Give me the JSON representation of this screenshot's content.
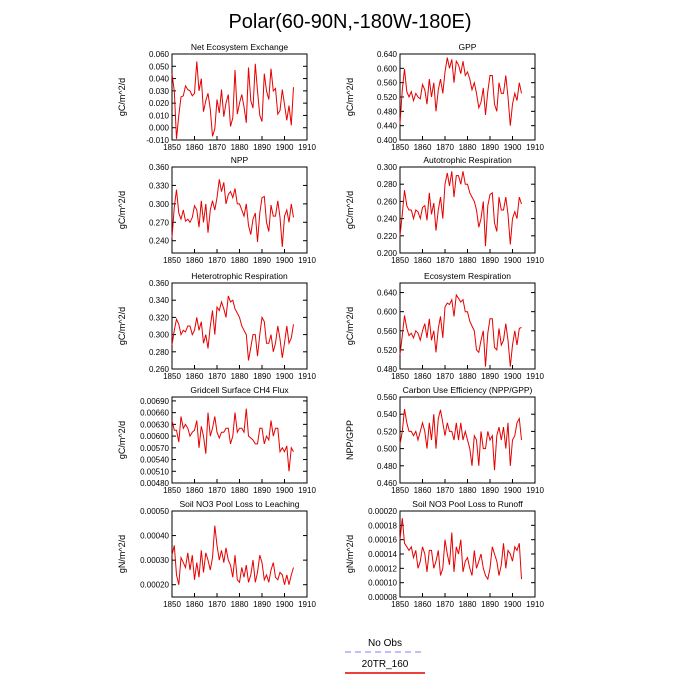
{
  "page_title": "Polar(60-90N,-180W-180E)",
  "legend": {
    "items": [
      {
        "label": "No Obs",
        "color": "#aaaaff",
        "style": "dashed"
      },
      {
        "label": "20TR_160",
        "color": "#e60000",
        "style": "solid"
      }
    ]
  },
  "chart_data": [
    {
      "type": "line",
      "title": "Net Ecosystem Exchange",
      "ylabel": "gC/m^2/d",
      "xlim": [
        1850,
        1910
      ],
      "ylim": [
        -0.01,
        0.06
      ],
      "xticks": [
        "1850",
        "1860",
        "1870",
        "1880",
        "1890",
        "1900",
        "1910"
      ],
      "yticks": [
        "-0.010",
        "0.000",
        "0.010",
        "0.020",
        "0.030",
        "0.040",
        "0.050",
        "0.060"
      ],
      "series": [
        {
          "color": "#e60000",
          "x_start": 1850,
          "values": [
            0.044,
            0.03,
            -0.009,
            0.01,
            0.025,
            0.026,
            0.034,
            0.031,
            0.03,
            0.026,
            0.028,
            0.054,
            0.03,
            0.04,
            0.013,
            0.022,
            0.028,
            0.015,
            -0.007,
            -0.001,
            0.023,
            0.012,
            0.031,
            0.009,
            0.02,
            0.027,
            0.001,
            0.008,
            0.047,
            0.011,
            0.02,
            0.027,
            0.017,
            0.004,
            0.049,
            0.022,
            0.016,
            0.052,
            0.03,
            0.01,
            0.005,
            0.044,
            0.03,
            0.023,
            0.048,
            0.03,
            0.032,
            0.011,
            0.014,
            0.031,
            0.019,
            0.006,
            0.018,
            0.002,
            0.033
          ]
        }
      ]
    },
    {
      "type": "line",
      "title": "GPP",
      "ylabel": "gC/m^2/d",
      "xlim": [
        1850,
        1910
      ],
      "ylim": [
        0.4,
        0.64
      ],
      "xticks": [
        "1850",
        "1860",
        "1870",
        "1880",
        "1890",
        "1900",
        "1910"
      ],
      "yticks": [
        "0.400",
        "0.440",
        "0.480",
        "0.520",
        "0.560",
        "0.600",
        "0.640"
      ],
      "series": [
        {
          "color": "#e60000",
          "x_start": 1850,
          "values": [
            0.445,
            0.54,
            0.598,
            0.535,
            0.52,
            0.535,
            0.51,
            0.53,
            0.52,
            0.515,
            0.555,
            0.54,
            0.5,
            0.57,
            0.52,
            0.56,
            0.48,
            0.54,
            0.57,
            0.53,
            0.59,
            0.63,
            0.6,
            0.625,
            0.56,
            0.62,
            0.61,
            0.585,
            0.62,
            0.58,
            0.59,
            0.57,
            0.54,
            0.56,
            0.53,
            0.49,
            0.505,
            0.545,
            0.47,
            0.535,
            0.58,
            0.58,
            0.5,
            0.48,
            0.56,
            0.53,
            0.53,
            0.58,
            0.52,
            0.44,
            0.5,
            0.53,
            0.51,
            0.56,
            0.53
          ]
        }
      ]
    },
    {
      "type": "line",
      "title": "NPP",
      "ylabel": "gC/m^2/d",
      "xlim": [
        1850,
        1910
      ],
      "ylim": [
        0.22,
        0.36
      ],
      "xticks": [
        "1850",
        "1860",
        "1870",
        "1880",
        "1890",
        "1900",
        "1910"
      ],
      "yticks": [
        "0.240",
        "0.270",
        "0.300",
        "0.330",
        "0.360"
      ],
      "series": [
        {
          "color": "#e60000",
          "x_start": 1850,
          "values": [
            0.245,
            0.295,
            0.323,
            0.285,
            0.275,
            0.29,
            0.272,
            0.275,
            0.27,
            0.278,
            0.297,
            0.29,
            0.262,
            0.305,
            0.27,
            0.3,
            0.253,
            0.29,
            0.305,
            0.29,
            0.31,
            0.34,
            0.32,
            0.335,
            0.3,
            0.315,
            0.32,
            0.31,
            0.325,
            0.3,
            0.3,
            0.29,
            0.28,
            0.3,
            0.265,
            0.25,
            0.275,
            0.285,
            0.238,
            0.285,
            0.31,
            0.312,
            0.27,
            0.255,
            0.298,
            0.28,
            0.28,
            0.305,
            0.278,
            0.23,
            0.28,
            0.29,
            0.27,
            0.3,
            0.278
          ]
        }
      ]
    },
    {
      "type": "line",
      "title": "Autotrophic Respiration",
      "ylabel": "gC/m^2/d",
      "xlim": [
        1850,
        1910
      ],
      "ylim": [
        0.2,
        0.3
      ],
      "xticks": [
        "1850",
        "1860",
        "1870",
        "1880",
        "1890",
        "1900",
        "1910"
      ],
      "yticks": [
        "0.200",
        "0.220",
        "0.240",
        "0.260",
        "0.280",
        "0.300"
      ],
      "series": [
        {
          "color": "#e60000",
          "x_start": 1850,
          "values": [
            0.22,
            0.245,
            0.273,
            0.255,
            0.25,
            0.25,
            0.24,
            0.25,
            0.248,
            0.24,
            0.253,
            0.255,
            0.238,
            0.27,
            0.245,
            0.258,
            0.226,
            0.25,
            0.265,
            0.24,
            0.28,
            0.293,
            0.278,
            0.295,
            0.265,
            0.29,
            0.29,
            0.28,
            0.295,
            0.28,
            0.28,
            0.27,
            0.265,
            0.26,
            0.25,
            0.23,
            0.24,
            0.26,
            0.208,
            0.255,
            0.268,
            0.27,
            0.235,
            0.225,
            0.265,
            0.25,
            0.25,
            0.265,
            0.245,
            0.21,
            0.24,
            0.248,
            0.24,
            0.265,
            0.257
          ]
        }
      ]
    },
    {
      "type": "line",
      "title": "Heterotrophic Respiration",
      "ylabel": "gC/m^2/d",
      "xlim": [
        1850,
        1910
      ],
      "ylim": [
        0.26,
        0.36
      ],
      "xticks": [
        "1850",
        "1860",
        "1870",
        "1880",
        "1890",
        "1900",
        "1910"
      ],
      "yticks": [
        "0.260",
        "0.280",
        "0.300",
        "0.320",
        "0.340",
        "0.360"
      ],
      "series": [
        {
          "color": "#e60000",
          "x_start": 1850,
          "values": [
            0.288,
            0.305,
            0.318,
            0.312,
            0.3,
            0.305,
            0.303,
            0.31,
            0.31,
            0.3,
            0.305,
            0.32,
            0.305,
            0.315,
            0.29,
            0.3,
            0.284,
            0.31,
            0.328,
            0.3,
            0.332,
            0.328,
            0.338,
            0.33,
            0.32,
            0.345,
            0.338,
            0.34,
            0.33,
            0.325,
            0.32,
            0.31,
            0.305,
            0.3,
            0.27,
            0.285,
            0.3,
            0.3,
            0.275,
            0.3,
            0.32,
            0.315,
            0.29,
            0.29,
            0.3,
            0.28,
            0.29,
            0.31,
            0.295,
            0.273,
            0.29,
            0.31,
            0.29,
            0.296,
            0.312
          ]
        }
      ]
    },
    {
      "type": "line",
      "title": "Ecosystem Respiration",
      "ylabel": "gC/m^2/d",
      "xlim": [
        1850,
        1910
      ],
      "ylim": [
        0.48,
        0.66
      ],
      "xticks": [
        "1850",
        "1860",
        "1870",
        "1880",
        "1890",
        "1900",
        "1910"
      ],
      "yticks": [
        "0.480",
        "0.520",
        "0.560",
        "0.600",
        "0.640"
      ],
      "series": [
        {
          "color": "#e60000",
          "x_start": 1850,
          "values": [
            0.51,
            0.55,
            0.592,
            0.565,
            0.55,
            0.555,
            0.545,
            0.56,
            0.555,
            0.54,
            0.56,
            0.575,
            0.545,
            0.585,
            0.54,
            0.56,
            0.515,
            0.565,
            0.59,
            0.545,
            0.61,
            0.618,
            0.615,
            0.625,
            0.59,
            0.635,
            0.628,
            0.62,
            0.625,
            0.6,
            0.6,
            0.58,
            0.57,
            0.56,
            0.52,
            0.515,
            0.54,
            0.56,
            0.485,
            0.555,
            0.585,
            0.585,
            0.525,
            0.52,
            0.565,
            0.53,
            0.54,
            0.575,
            0.54,
            0.485,
            0.53,
            0.56,
            0.53,
            0.565,
            0.567
          ]
        }
      ]
    },
    {
      "type": "line",
      "title": "Gridcell Surface CH4 Flux",
      "ylabel": "gC/m^2/d",
      "xlim": [
        1850,
        1910
      ],
      "ylim": [
        0.0048,
        0.007
      ],
      "xticks": [
        "1850",
        "1860",
        "1870",
        "1880",
        "1890",
        "1900",
        "1910"
      ],
      "yticks": [
        "0.00480",
        "0.00510",
        "0.00540",
        "0.00570",
        "0.00600",
        "0.00630",
        "0.00660",
        "0.00690"
      ],
      "series": [
        {
          "color": "#e60000",
          "x_start": 1850,
          "values": [
            0.0064,
            0.00615,
            0.00615,
            0.00585,
            0.0065,
            0.0062,
            0.0063,
            0.0062,
            0.006,
            0.0061,
            0.00615,
            0.0064,
            0.0057,
            0.00625,
            0.006,
            0.00555,
            0.0066,
            0.006,
            0.0062,
            0.0065,
            0.0061,
            0.00595,
            0.0061,
            0.0061,
            0.0062,
            0.0062,
            0.0058,
            0.006,
            0.0066,
            0.0061,
            0.0062,
            0.0062,
            0.0061,
            0.0067,
            0.006,
            0.00595,
            0.0059,
            0.0058,
            0.0058,
            0.0062,
            0.0062,
            0.0058,
            0.006,
            0.0059,
            0.0064,
            0.006,
            0.0062,
            0.0062,
            0.0056,
            0.0057,
            0.0056,
            0.00575,
            0.0051,
            0.0057,
            0.0056
          ]
        }
      ]
    },
    {
      "type": "line",
      "title": "Carbon Use Efficiency (NPP/GPP)",
      "ylabel": "NPP/GPP",
      "xlim": [
        1850,
        1910
      ],
      "ylim": [
        0.46,
        0.56
      ],
      "xticks": [
        "1850",
        "1860",
        "1870",
        "1880",
        "1890",
        "1900",
        "1910"
      ],
      "yticks": [
        "0.460",
        "0.480",
        "0.500",
        "0.520",
        "0.540",
        "0.560"
      ],
      "series": [
        {
          "color": "#e60000",
          "x_start": 1850,
          "values": [
            0.505,
            0.52,
            0.546,
            0.53,
            0.52,
            0.52,
            0.515,
            0.52,
            0.51,
            0.52,
            0.53,
            0.52,
            0.5,
            0.53,
            0.51,
            0.54,
            0.5,
            0.535,
            0.545,
            0.53,
            0.515,
            0.53,
            0.52,
            0.52,
            0.51,
            0.53,
            0.51,
            0.53,
            0.51,
            0.52,
            0.51,
            0.5,
            0.48,
            0.515,
            0.51,
            0.48,
            0.52,
            0.5,
            0.5,
            0.52,
            0.51,
            0.515,
            0.475,
            0.515,
            0.525,
            0.51,
            0.525,
            0.5,
            0.53,
            0.48,
            0.51,
            0.515,
            0.53,
            0.535,
            0.51
          ]
        }
      ]
    },
    {
      "type": "line",
      "title": "Soil NO3 Pool Loss to Leaching",
      "ylabel": "gN/m^2/d",
      "xlim": [
        1850,
        1910
      ],
      "ylim": [
        0.00015,
        0.0005
      ],
      "xticks": [
        "1850",
        "1860",
        "1870",
        "1880",
        "1890",
        "1900",
        "1910"
      ],
      "yticks": [
        "0.00020",
        "0.00030",
        "0.00040",
        "0.00050"
      ],
      "series": [
        {
          "color": "#e60000",
          "x_start": 1850,
          "values": [
            0.00032,
            0.00036,
            0.00024,
            0.0002,
            0.00031,
            0.00029,
            0.00027,
            0.00033,
            0.00026,
            0.00032,
            0.00022,
            0.00029,
            0.00023,
            0.00034,
            0.00025,
            0.00033,
            0.0003,
            0.00026,
            0.00031,
            0.00044,
            0.00036,
            0.0003,
            0.00034,
            0.00029,
            0.00035,
            0.0003,
            0.00028,
            0.00023,
            0.00032,
            0.00022,
            0.00021,
            0.00027,
            0.00023,
            0.00028,
            0.00021,
            0.00024,
            0.0003,
            0.00021,
            0.00025,
            0.00032,
            0.00029,
            0.00022,
            0.00024,
            0.00021,
            0.00026,
            0.00029,
            0.00023,
            0.00022,
            0.00025,
            0.00024,
            0.0002,
            0.00024,
            0.0002,
            0.00024,
            0.00027
          ]
        }
      ]
    },
    {
      "type": "line",
      "title": "Soil NO3 Pool Loss to Runoff",
      "ylabel": "gN/m^2/d",
      "xlim": [
        1850,
        1910
      ],
      "ylim": [
        8e-05,
        0.0002
      ],
      "xticks": [
        "1850",
        "1860",
        "1870",
        "1880",
        "1890",
        "1900",
        "1910"
      ],
      "yticks": [
        "0.00008",
        "0.00010",
        "0.00012",
        "0.00014",
        "0.00016",
        "0.00018",
        "0.00020"
      ],
      "series": [
        {
          "color": "#e60000",
          "x_start": 1850,
          "values": [
            0.00016,
            0.00019,
            0.000155,
            0.00015,
            0.000145,
            0.00015,
            0.000135,
            0.000145,
            0.00012,
            0.00013,
            0.00015,
            0.00014,
            0.000115,
            0.000145,
            0.000145,
            0.00012,
            0.00013,
            0.000145,
            0.00011,
            0.00012,
            0.00016,
            0.00014,
            0.000125,
            0.00017,
            0.000115,
            0.00015,
            0.00014,
            0.00016,
            0.000115,
            0.00013,
            0.000135,
            0.00012,
            0.00011,
            0.000145,
            0.00012,
            0.00013,
            0.00014,
            0.00012,
            0.00011,
            0.000105,
            0.00012,
            0.00015,
            0.00014,
            0.00013,
            0.00011,
            0.000125,
            0.000155,
            0.00012,
            0.000145,
            0.00014,
            0.00013,
            0.00015,
            0.000145,
            0.000155,
            0.000105
          ]
        }
      ]
    }
  ]
}
